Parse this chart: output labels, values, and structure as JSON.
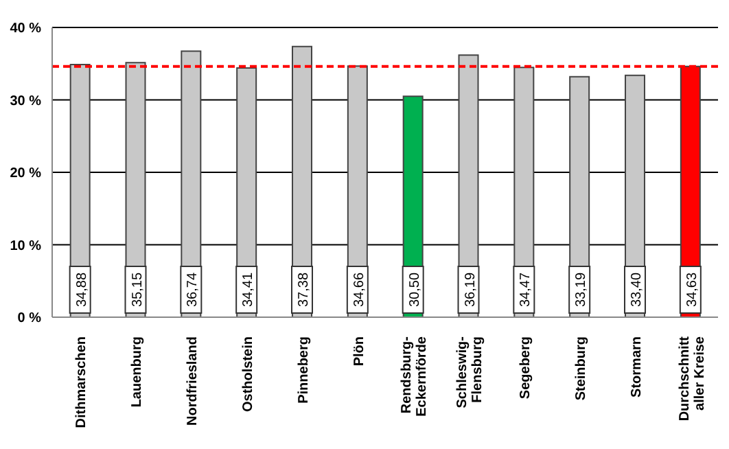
{
  "chart_data": {
    "type": "bar",
    "categories": [
      "Dithmarschen",
      "Lauenburg",
      "Nordfriesland",
      "Ostholstein",
      "Pinneberg",
      "Plön",
      "Rendsburg-\nEckernförde",
      "Schleswig-\nFlensburg",
      "Segeberg",
      "Steinburg",
      "Stormarn",
      "Durchschnitt\naller Kreise"
    ],
    "values": [
      34.88,
      35.15,
      36.74,
      34.41,
      37.38,
      34.66,
      30.5,
      36.19,
      34.47,
      33.19,
      33.4,
      34.63
    ],
    "colors": [
      "#c8c8c8",
      "#c8c8c8",
      "#c8c8c8",
      "#c8c8c8",
      "#c8c8c8",
      "#c8c8c8",
      "#00b050",
      "#c8c8c8",
      "#c8c8c8",
      "#c8c8c8",
      "#c8c8c8",
      "#ff0000"
    ],
    "value_labels": [
      "34,88",
      "35,15",
      "36,74",
      "34,41",
      "37,38",
      "34,66",
      "30,50",
      "36,19",
      "34,47",
      "33,19",
      "33,40",
      "34,63"
    ],
    "ylim": [
      0,
      40
    ],
    "yticks": [
      {
        "value": 0,
        "label": "0 %"
      },
      {
        "value": 10,
        "label": "10 %"
      },
      {
        "value": 20,
        "label": "20 %"
      },
      {
        "value": 30,
        "label": "30 %"
      },
      {
        "value": 40,
        "label": "40 %"
      }
    ],
    "grid": "y",
    "ref_lines": [
      {
        "axis": "y",
        "value": 34.63,
        "label": null,
        "color": "#ff0000",
        "line_style": "dashed"
      }
    ]
  }
}
